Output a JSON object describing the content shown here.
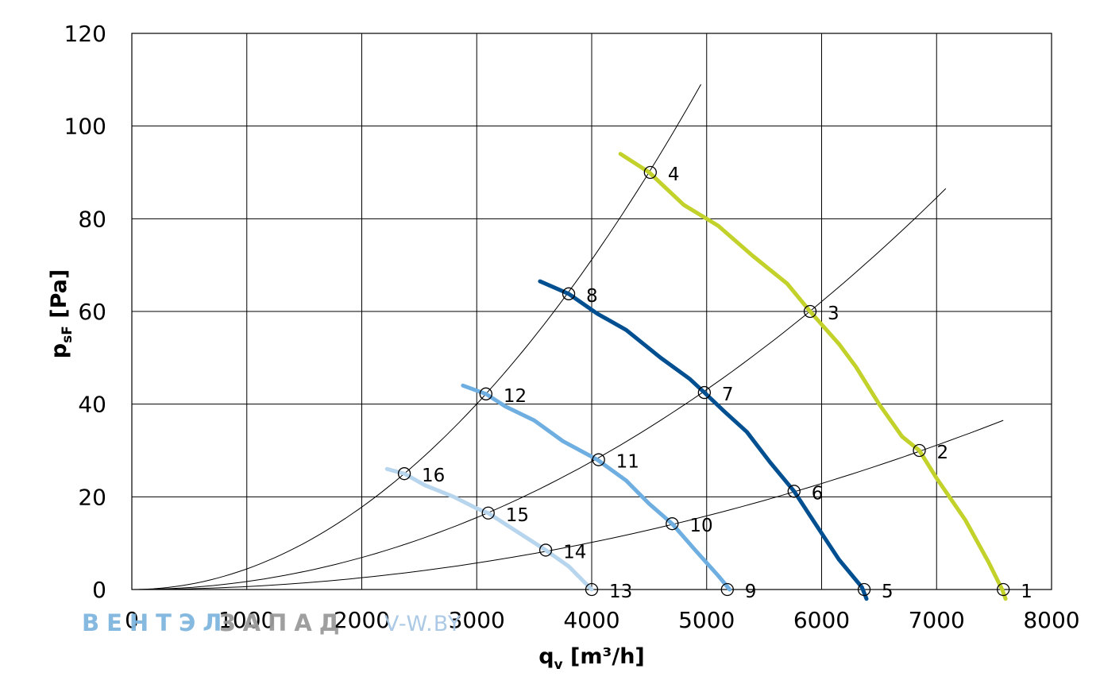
{
  "chart_data": {
    "type": "line",
    "xlabel": {
      "main": "q",
      "sub": "v",
      "rest": " [m³/h]"
    },
    "ylabel": {
      "main": "p",
      "sub": "sF",
      "rest": " [Pa]"
    },
    "xlim": [
      0,
      8000
    ],
    "ylim": [
      0,
      120
    ],
    "x_ticks": [
      "0",
      "1000",
      "2000",
      "3000",
      "4000",
      "5000",
      "6000",
      "7000",
      "8000"
    ],
    "y_ticks": [
      "0",
      "20",
      "40",
      "60",
      "80",
      "100",
      "120"
    ],
    "grid": true,
    "legend": "none",
    "series": [
      {
        "color": "#c3d12b",
        "points": [
          [
            4250,
            94
          ],
          [
            4500,
            90
          ],
          [
            4800,
            83
          ],
          [
            5100,
            78.5
          ],
          [
            5400,
            72
          ],
          [
            5700,
            66
          ],
          [
            5900,
            60
          ],
          [
            6150,
            53
          ],
          [
            6300,
            48
          ],
          [
            6500,
            40
          ],
          [
            6700,
            33
          ],
          [
            6850,
            30
          ],
          [
            7000,
            24
          ],
          [
            7250,
            15
          ],
          [
            7450,
            6
          ],
          [
            7570,
            0
          ],
          [
            7600,
            -2
          ]
        ]
      },
      {
        "color": "#004f91",
        "points": [
          [
            3550,
            66.5
          ],
          [
            3800,
            63.8
          ],
          [
            4050,
            59.5
          ],
          [
            4300,
            56
          ],
          [
            4600,
            50
          ],
          [
            4850,
            45.5
          ],
          [
            4980,
            42.5
          ],
          [
            5150,
            38.5
          ],
          [
            5350,
            34
          ],
          [
            5550,
            27.5
          ],
          [
            5760,
            21.2
          ],
          [
            5950,
            14
          ],
          [
            6150,
            6.5
          ],
          [
            6350,
            0.5
          ],
          [
            6390,
            -2
          ]
        ]
      },
      {
        "color": "#6faee0",
        "points": [
          [
            2880,
            44
          ],
          [
            3080,
            42.2
          ],
          [
            3250,
            39.5
          ],
          [
            3500,
            36.5
          ],
          [
            3750,
            32
          ],
          [
            4050,
            28
          ],
          [
            4300,
            23.5
          ],
          [
            4500,
            18.5
          ],
          [
            4700,
            14.2
          ],
          [
            4900,
            8.5
          ],
          [
            5100,
            3
          ],
          [
            5200,
            0
          ]
        ]
      },
      {
        "color": "#b8d5ee",
        "points": [
          [
            2220,
            26
          ],
          [
            2370,
            25
          ],
          [
            2550,
            22.5
          ],
          [
            2800,
            20
          ],
          [
            3000,
            17.5
          ],
          [
            3100,
            16.5
          ],
          [
            3350,
            12.5
          ],
          [
            3600,
            8.5
          ],
          [
            3800,
            5
          ],
          [
            4000,
            0
          ]
        ]
      }
    ],
    "system_curves": [
      {
        "end": [
          4950,
          109
        ]
      },
      {
        "end": [
          7080,
          86.5
        ]
      },
      {
        "end": [
          7580,
          36.5
        ]
      }
    ],
    "points": [
      {
        "label": "1",
        "x": 7580,
        "y": 0
      },
      {
        "label": "2",
        "x": 6850,
        "y": 30
      },
      {
        "label": "3",
        "x": 5900,
        "y": 60
      },
      {
        "label": "4",
        "x": 4510,
        "y": 90
      },
      {
        "label": "5",
        "x": 6370,
        "y": 0
      },
      {
        "label": "6",
        "x": 5760,
        "y": 21.2
      },
      {
        "label": "7",
        "x": 4980,
        "y": 42.5
      },
      {
        "label": "8",
        "x": 3800,
        "y": 63.8
      },
      {
        "label": "9",
        "x": 5180,
        "y": 0
      },
      {
        "label": "10",
        "x": 4700,
        "y": 14.2
      },
      {
        "label": "11",
        "x": 4060,
        "y": 28
      },
      {
        "label": "12",
        "x": 3080,
        "y": 42.2
      },
      {
        "label": "13",
        "x": 4000,
        "y": 0
      },
      {
        "label": "14",
        "x": 3600,
        "y": 8.5
      },
      {
        "label": "15",
        "x": 3100,
        "y": 16.5
      },
      {
        "label": "16",
        "x": 2370,
        "y": 25
      }
    ]
  },
  "watermark": {
    "brand_part1": "ВЕНТЭЛ",
    "brand_part2": "ЗАПАД",
    "url": "V-W.BY",
    "color1": "#7fb6de",
    "color2": "#9a9a9a",
    "color_url": "#a8c8e4"
  }
}
